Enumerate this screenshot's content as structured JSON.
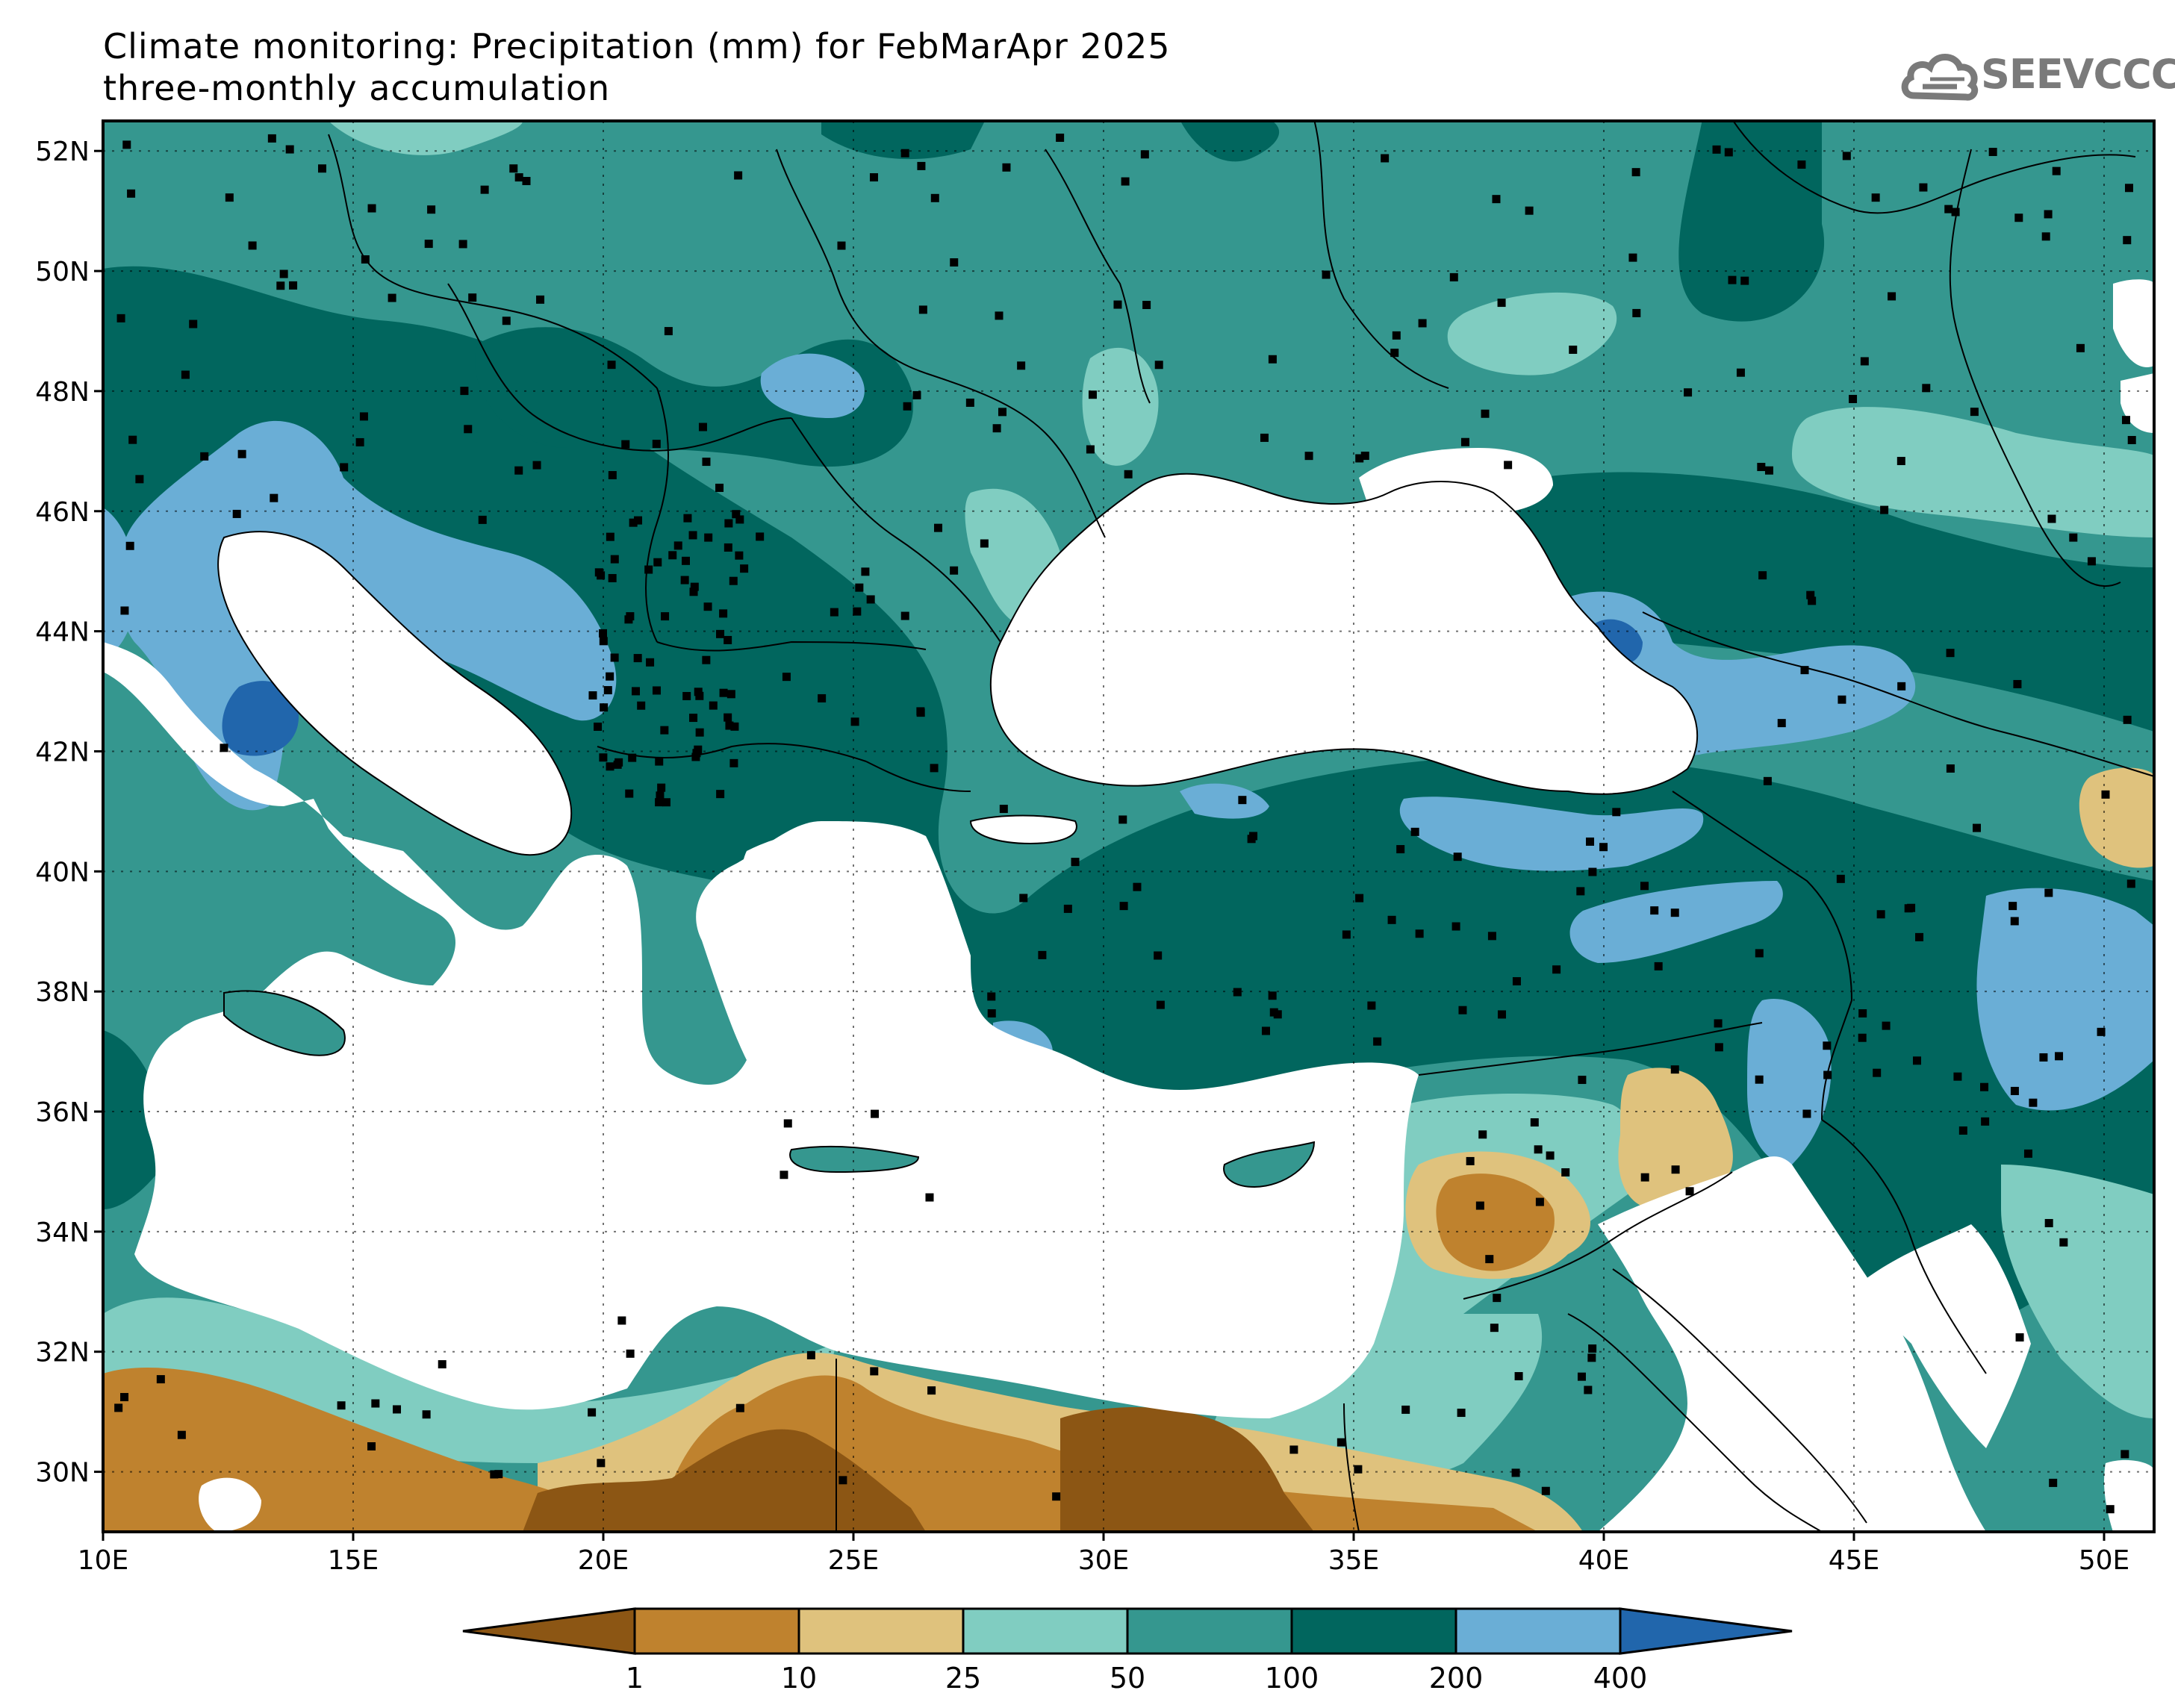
{
  "title": {
    "line1": "Climate monitoring: Precipitation (mm) for FebMarApr 2025",
    "line2": "three-monthly accumulation"
  },
  "logo": {
    "text": "SEEVCCC",
    "icon": "cloud-logo-icon"
  },
  "map": {
    "lon_range": [
      10,
      51
    ],
    "lat_range": [
      29,
      52.5
    ],
    "lon_ticks": [
      {
        "value": 10,
        "label": "10E"
      },
      {
        "value": 15,
        "label": "15E"
      },
      {
        "value": 20,
        "label": "20E"
      },
      {
        "value": 25,
        "label": "25E"
      },
      {
        "value": 30,
        "label": "30E"
      },
      {
        "value": 35,
        "label": "35E"
      },
      {
        "value": 40,
        "label": "40E"
      },
      {
        "value": 45,
        "label": "45E"
      },
      {
        "value": 50,
        "label": "50E"
      }
    ],
    "lat_ticks": [
      {
        "value": 30,
        "label": "30N"
      },
      {
        "value": 32,
        "label": "32N"
      },
      {
        "value": 34,
        "label": "34N"
      },
      {
        "value": 36,
        "label": "36N"
      },
      {
        "value": 38,
        "label": "38N"
      },
      {
        "value": 40,
        "label": "40N"
      },
      {
        "value": 42,
        "label": "42N"
      },
      {
        "value": 44,
        "label": "44N"
      },
      {
        "value": 46,
        "label": "46N"
      },
      {
        "value": 48,
        "label": "48N"
      },
      {
        "value": 50,
        "label": "50N"
      },
      {
        "value": 52,
        "label": "52N"
      }
    ],
    "grid": "dotted"
  },
  "legend": {
    "levels": [
      "1",
      "10",
      "25",
      "50",
      "100",
      "200",
      "400"
    ],
    "colors": [
      "#8c5614",
      "#bf822e",
      "#dfc27d",
      "#80cdc1",
      "#35978f",
      "#01665e",
      "#6aaed6",
      "#2166ac"
    ]
  }
}
